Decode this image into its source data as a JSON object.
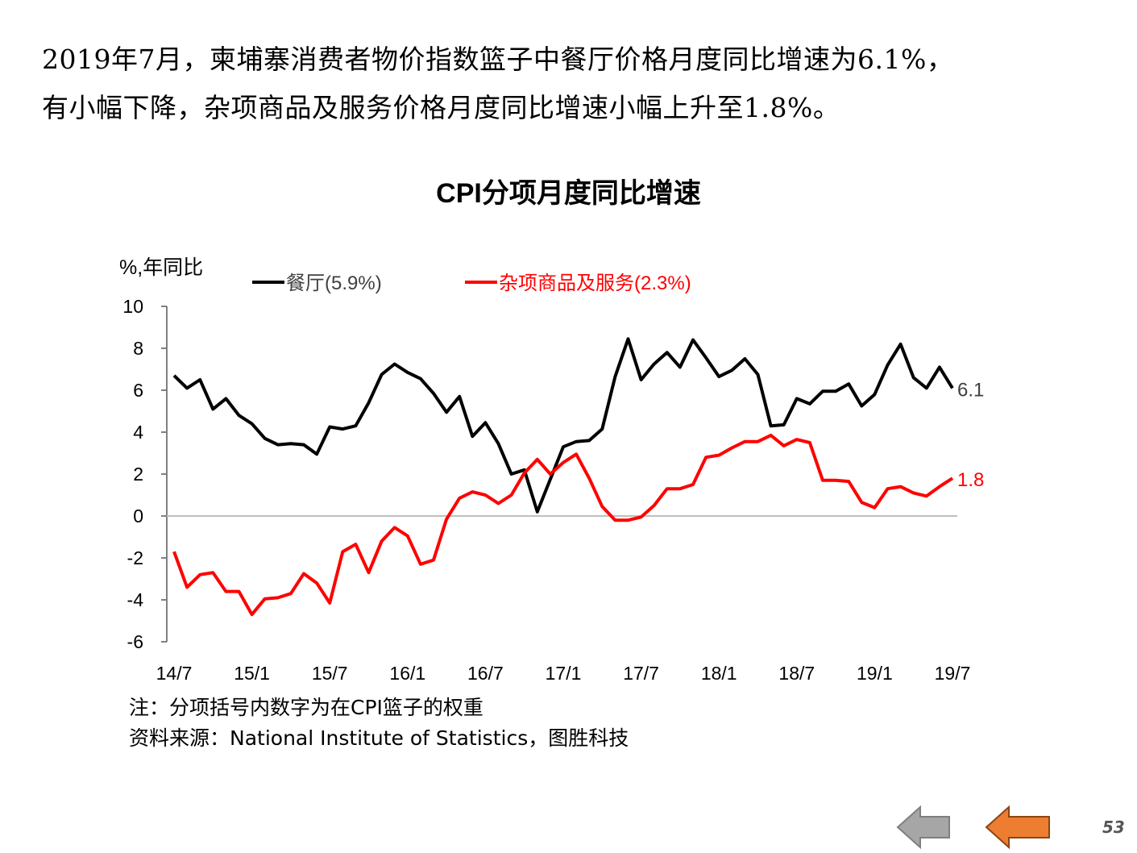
{
  "intro": {
    "line1": "2019年7月，柬埔寨消费者物价指数篮子中餐厅价格月度同比增速为6.1%，",
    "line2": "有小幅下降，杂项商品及服务价格月度同比增速小幅上升至1.8%。"
  },
  "chart_data": {
    "type": "line",
    "title": "CPI分项月度同比增速",
    "ylabel": "%,年同比",
    "ylim": [
      -6,
      10
    ],
    "yticks": [
      "10",
      "8",
      "6",
      "4",
      "2",
      "0",
      "-2",
      "-4",
      "-6"
    ],
    "ytick_values": [
      10,
      8,
      6,
      4,
      2,
      0,
      -2,
      -4,
      -6
    ],
    "xlabels": [
      "14/7",
      "15/1",
      "15/7",
      "16/1",
      "16/7",
      "17/1",
      "17/7",
      "18/1",
      "18/7",
      "19/1",
      "19/7"
    ],
    "n_points": 61,
    "series": [
      {
        "name": "餐厅(5.9%)",
        "color": "#000000",
        "end_label": "6.1",
        "values": [
          6.7,
          6.1,
          6.5,
          5.1,
          5.6,
          4.8,
          4.4,
          3.7,
          3.4,
          3.45,
          3.4,
          2.95,
          4.25,
          4.15,
          4.3,
          5.4,
          6.75,
          7.25,
          6.85,
          6.55,
          5.85,
          4.95,
          5.7,
          3.8,
          4.45,
          3.45,
          2.0,
          2.2,
          0.2,
          1.75,
          3.3,
          3.55,
          3.6,
          4.15,
          6.65,
          8.45,
          6.5,
          7.25,
          7.8,
          7.1,
          8.4,
          7.55,
          6.65,
          6.95,
          7.5,
          6.75,
          4.3,
          4.35,
          5.6,
          5.35,
          5.95,
          5.95,
          6.3,
          5.25,
          5.8,
          7.2,
          8.2,
          6.6,
          6.1,
          7.1,
          6.1
        ]
      },
      {
        "name": "杂项商品及服务(2.3%)",
        "color": "#ff0000",
        "end_label": "1.8",
        "values": [
          -1.7,
          -3.4,
          -2.8,
          -2.7,
          -3.6,
          -3.6,
          -4.7,
          -3.95,
          -3.9,
          -3.7,
          -2.75,
          -3.2,
          -4.15,
          -1.7,
          -1.35,
          -2.7,
          -1.2,
          -0.55,
          -0.95,
          -2.3,
          -2.1,
          -0.15,
          0.85,
          1.15,
          1.0,
          0.6,
          1.0,
          2.05,
          2.7,
          2.0,
          2.55,
          2.95,
          1.8,
          0.45,
          -0.2,
          -0.2,
          -0.05,
          0.5,
          1.3,
          1.3,
          1.5,
          2.8,
          2.9,
          3.25,
          3.55,
          3.55,
          3.85,
          3.35,
          3.65,
          3.5,
          1.7,
          1.7,
          1.65,
          0.65,
          0.4,
          1.3,
          1.4,
          1.1,
          0.95,
          1.4,
          1.8
        ]
      }
    ]
  },
  "notes": {
    "line1": "注：分项括号内数字为在CPI篮子的权重",
    "line2": "资料来源：National  Institute  of Statistics，图胜科技"
  },
  "nav": {
    "back_icon": "arrow-left-icon",
    "next_icon": "arrow-left-icon",
    "back_color": "#a6a6a6",
    "next_color": "#ed7d31"
  },
  "page_number": "53"
}
